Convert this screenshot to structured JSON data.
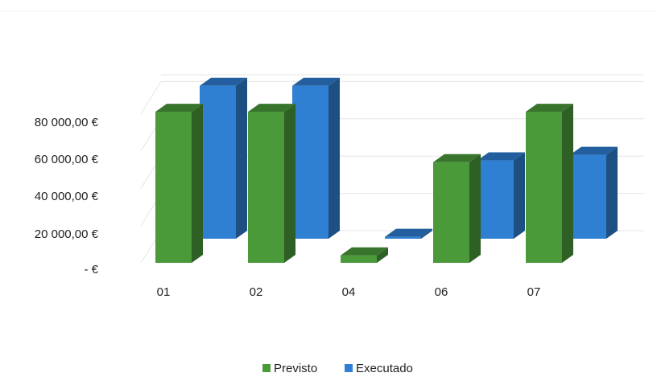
{
  "chart_data": {
    "type": "bar",
    "style": "3d-clustered-column",
    "categories": [
      "01",
      "02",
      "04",
      "06",
      "07"
    ],
    "series": [
      {
        "name": "Previsto",
        "color": "#4a9a3a",
        "values": [
          81000,
          81000,
          4000,
          54000,
          81000
        ]
      },
      {
        "name": "Executado",
        "color": "#2f7fd2",
        "values": [
          82000,
          82000,
          1000,
          42000,
          45000
        ]
      }
    ],
    "y_ticks": [
      "-   €",
      "20 000,00 €",
      "40 000,00 €",
      "60 000,00 €",
      "80 000,00 €"
    ],
    "ylim": [
      0,
      100000
    ],
    "grid": true,
    "legend_position": "bottom"
  }
}
